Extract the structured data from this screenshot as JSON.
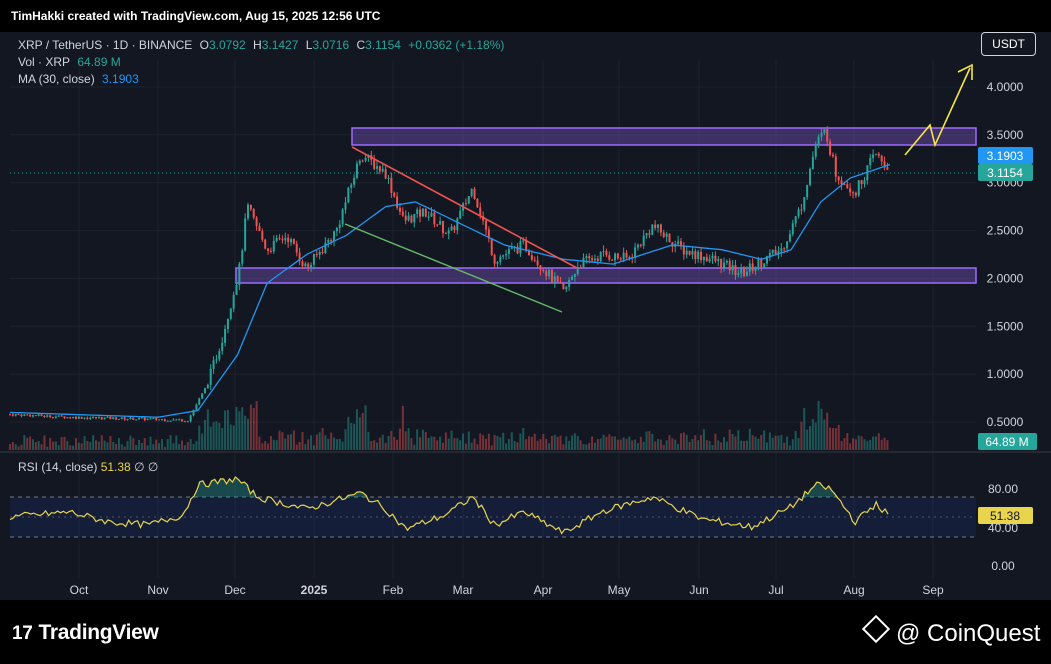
{
  "header": {
    "credit": "TimHakki created with TradingView.com, Aug 15, 2025 12:56 UTC"
  },
  "legend": {
    "symbol": "XRP / TetherUS · 1D · BINANCE",
    "o_label": "O",
    "o": "3.0792",
    "h_label": "H",
    "h": "3.1427",
    "l_label": "L",
    "l": "3.0716",
    "c_label": "C",
    "c": "3.1154",
    "chg": "+0.0362 (+1.18%)",
    "vol_label": "Vol · XRP",
    "vol": "64.89 M",
    "ma_label": "MA (30, close)",
    "ma": "3.1903"
  },
  "rsi_legend": {
    "label": "RSI (14, close)",
    "value": "51.38",
    "extra": "∅ ∅"
  },
  "currency_button": "USDT",
  "brand": {
    "left": "TradingView",
    "right": "@ CoinQuest"
  },
  "colors": {
    "up": "#26a69a",
    "down": "#ef5350",
    "ma": "#2196f3",
    "zone": "#7e57c2",
    "rsi": "#e8d44d",
    "arrow": "#f5e642"
  },
  "chart_data": {
    "type": "candlestick",
    "title": "XRP / TetherUS · 1D · BINANCE",
    "price_axis": {
      "ticks": [
        "4.0000",
        "3.5000",
        "3.0000",
        "2.5000",
        "2.0000",
        "1.5000",
        "1.0000",
        "0.5000"
      ],
      "min": 0.0,
      "max": 4.5
    },
    "time_axis": [
      "Oct",
      "Nov",
      "Dec",
      "2025",
      "Feb",
      "Mar",
      "Apr",
      "May",
      "Jun",
      "Jul",
      "Aug",
      "Sep"
    ],
    "price_labels": {
      "ma": "3.1903",
      "last": "3.1154",
      "volume": "64.89 M"
    },
    "series": [
      {
        "name": "XRP / TetherUS",
        "keypoints": [
          {
            "t": 0,
            "p": 0.58
          },
          {
            "t": 60,
            "p": 0.55
          },
          {
            "t": 180,
            "p": 0.52
          },
          {
            "t": 200,
            "p": 0.9
          },
          {
            "t": 215,
            "p": 1.4
          },
          {
            "t": 232,
            "p": 2.1
          },
          {
            "t": 240,
            "p": 2.75
          },
          {
            "t": 260,
            "p": 2.3
          },
          {
            "t": 280,
            "p": 2.45
          },
          {
            "t": 300,
            "p": 2.1
          },
          {
            "t": 330,
            "p": 2.5
          },
          {
            "t": 355,
            "p": 3.3
          },
          {
            "t": 380,
            "p": 3.1
          },
          {
            "t": 398,
            "p": 2.6
          },
          {
            "t": 420,
            "p": 2.7
          },
          {
            "t": 445,
            "p": 2.45
          },
          {
            "t": 468,
            "p": 2.95
          },
          {
            "t": 490,
            "p": 2.2
          },
          {
            "t": 520,
            "p": 2.35
          },
          {
            "t": 540,
            "p": 2.1
          },
          {
            "t": 560,
            "p": 1.85
          },
          {
            "t": 575,
            "p": 2.15
          },
          {
            "t": 600,
            "p": 2.25
          },
          {
            "t": 625,
            "p": 2.2
          },
          {
            "t": 650,
            "p": 2.55
          },
          {
            "t": 680,
            "p": 2.3
          },
          {
            "t": 710,
            "p": 2.2
          },
          {
            "t": 740,
            "p": 2.05
          },
          {
            "t": 755,
            "p": 2.15
          },
          {
            "t": 780,
            "p": 2.3
          },
          {
            "t": 800,
            "p": 2.75
          },
          {
            "t": 815,
            "p": 3.4
          },
          {
            "t": 825,
            "p": 3.55
          },
          {
            "t": 835,
            "p": 3.1
          },
          {
            "t": 855,
            "p": 2.9
          },
          {
            "t": 875,
            "p": 3.3
          },
          {
            "t": 890,
            "p": 3.12
          }
        ]
      },
      {
        "name": "MA (30, close)",
        "keypoints": [
          {
            "t": 0,
            "p": 0.6
          },
          {
            "t": 150,
            "p": 0.55
          },
          {
            "t": 190,
            "p": 0.62
          },
          {
            "t": 230,
            "p": 1.2
          },
          {
            "t": 260,
            "p": 1.95
          },
          {
            "t": 300,
            "p": 2.25
          },
          {
            "t": 340,
            "p": 2.45
          },
          {
            "t": 380,
            "p": 2.75
          },
          {
            "t": 410,
            "p": 2.8
          },
          {
            "t": 450,
            "p": 2.6
          },
          {
            "t": 500,
            "p": 2.35
          },
          {
            "t": 560,
            "p": 2.2
          },
          {
            "t": 610,
            "p": 2.15
          },
          {
            "t": 670,
            "p": 2.35
          },
          {
            "t": 720,
            "p": 2.3
          },
          {
            "t": 760,
            "p": 2.2
          },
          {
            "t": 790,
            "p": 2.3
          },
          {
            "t": 820,
            "p": 2.8
          },
          {
            "t": 850,
            "p": 3.05
          },
          {
            "t": 890,
            "p": 3.19
          }
        ]
      },
      {
        "name": "RSI (14, close)",
        "axis": {
          "ticks": [
            "80.00",
            "40.00",
            "0.00"
          ],
          "current": "51.38",
          "bands": [
            70,
            50,
            30
          ]
        },
        "keypoints": [
          {
            "t": 0,
            "p": 50
          },
          {
            "t": 60,
            "p": 55
          },
          {
            "t": 100,
            "p": 45
          },
          {
            "t": 140,
            "p": 42
          },
          {
            "t": 175,
            "p": 52
          },
          {
            "t": 190,
            "p": 82
          },
          {
            "t": 230,
            "p": 88
          },
          {
            "t": 250,
            "p": 70
          },
          {
            "t": 300,
            "p": 58
          },
          {
            "t": 355,
            "p": 74
          },
          {
            "t": 380,
            "p": 58
          },
          {
            "t": 400,
            "p": 38
          },
          {
            "t": 440,
            "p": 52
          },
          {
            "t": 468,
            "p": 70
          },
          {
            "t": 490,
            "p": 42
          },
          {
            "t": 520,
            "p": 55
          },
          {
            "t": 560,
            "p": 34
          },
          {
            "t": 600,
            "p": 56
          },
          {
            "t": 650,
            "p": 70
          },
          {
            "t": 700,
            "p": 48
          },
          {
            "t": 750,
            "p": 40
          },
          {
            "t": 790,
            "p": 60
          },
          {
            "t": 815,
            "p": 82
          },
          {
            "t": 830,
            "p": 78
          },
          {
            "t": 855,
            "p": 45
          },
          {
            "t": 875,
            "p": 63
          },
          {
            "t": 890,
            "p": 51
          }
        ]
      }
    ]
  }
}
